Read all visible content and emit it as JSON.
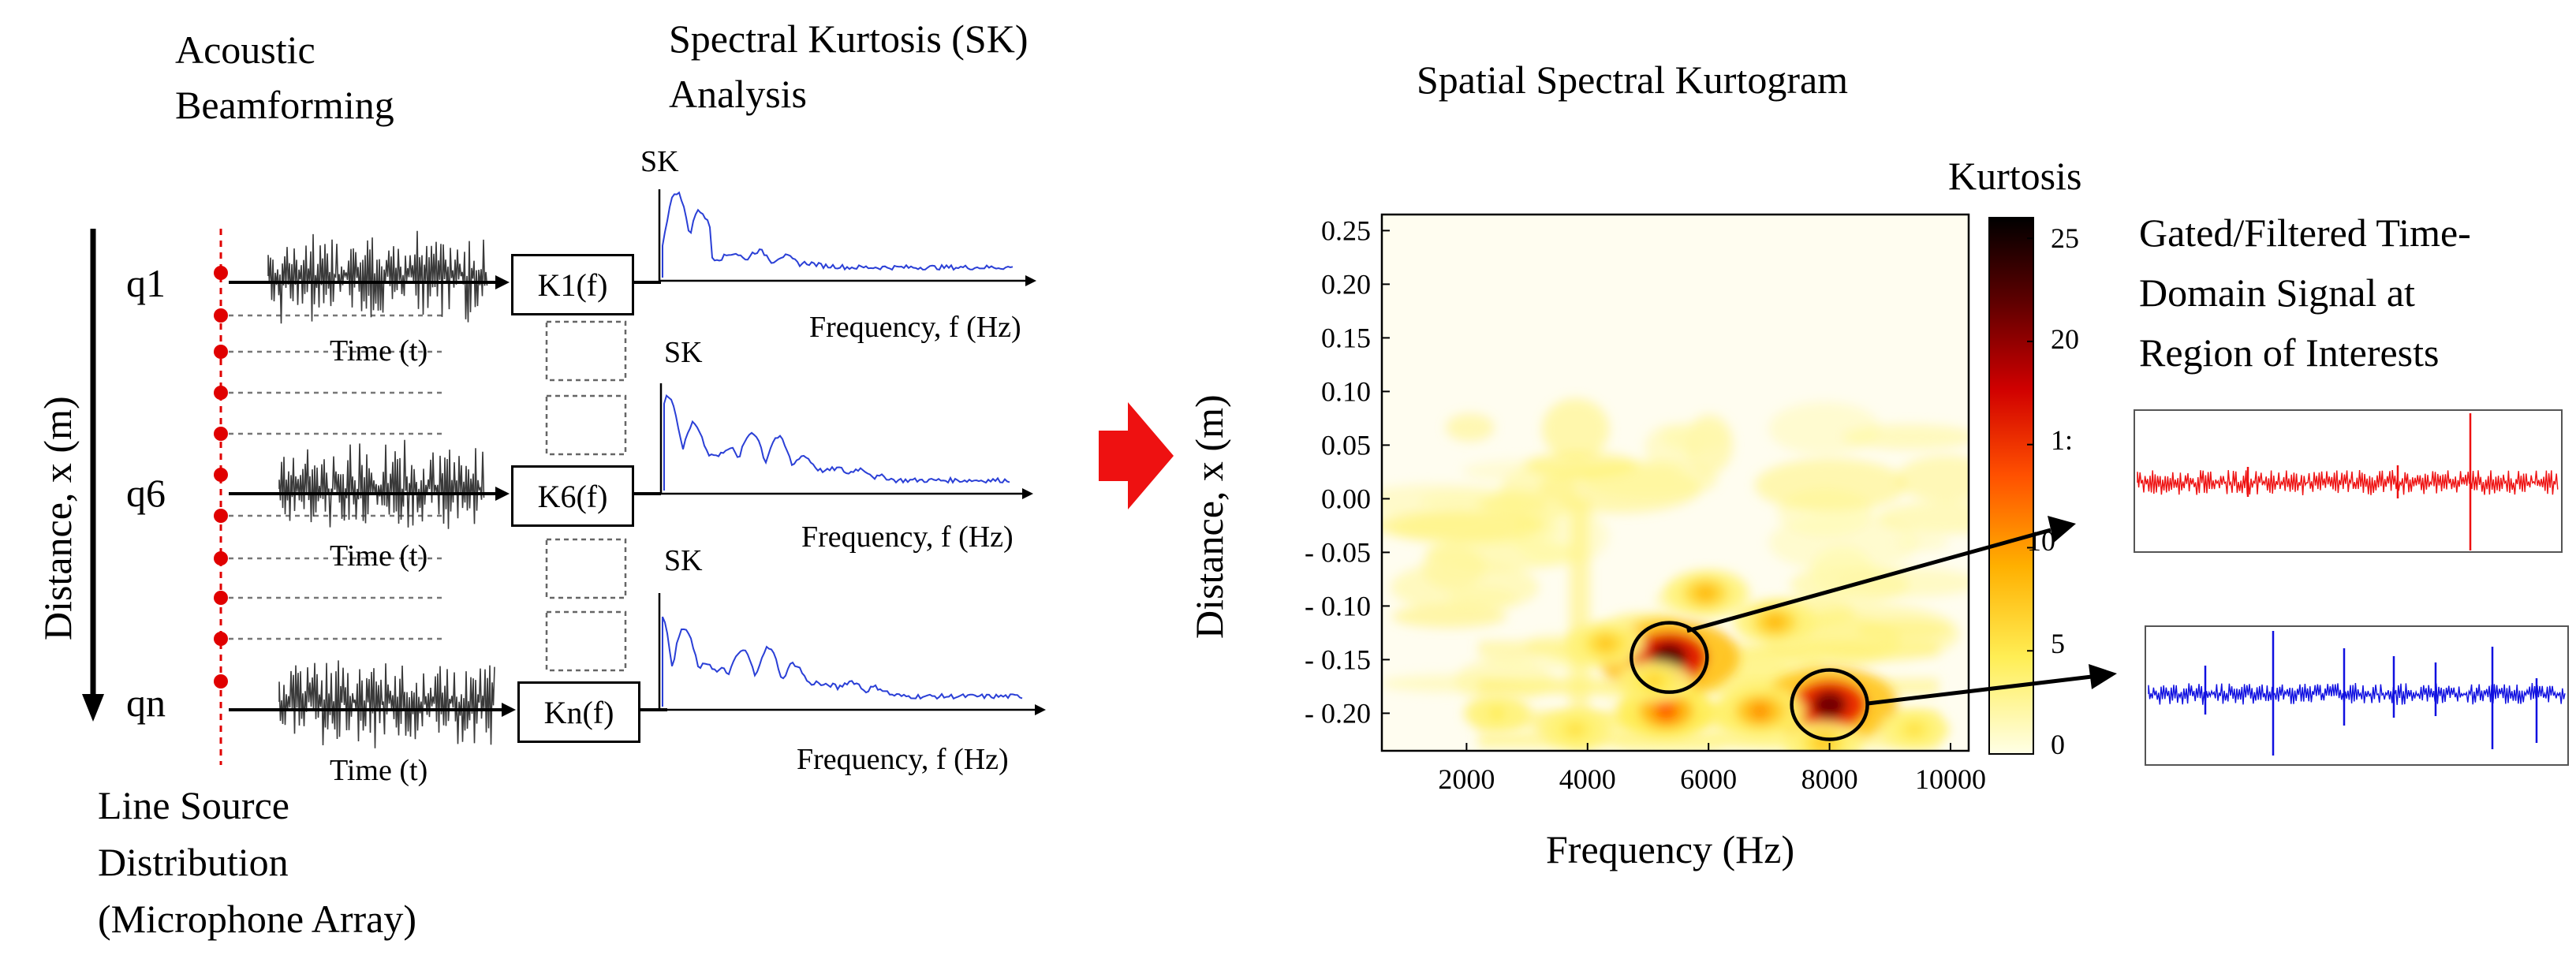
{
  "left": {
    "title_beamforming": [
      "Acoustic",
      "Beamforming"
    ],
    "title_sk": [
      "Spectral Kurtosis (SK)",
      "Analysis"
    ],
    "y_axis_label": "Distance, x (m)",
    "rows": [
      {
        "source": "q1",
        "box": "K1(f)",
        "time_label": "Time (t)",
        "sk_label": "SK",
        "freq_label": "Frequency,  f (Hz)"
      },
      {
        "source": "q6",
        "box": "K6(f)",
        "time_label": "Time (t)",
        "sk_label": "SK",
        "freq_label": "Frequency,  f (Hz)"
      },
      {
        "source": "qn",
        "box": "Kn(f)",
        "time_label": "Time (t)",
        "sk_label": "SK",
        "freq_label": "Frequency,  f (Hz)"
      }
    ],
    "line_source_label": [
      "Line Source",
      "Distribution",
      "(Microphone Array)"
    ]
  },
  "kurtogram": {
    "title": "Spatial Spectral Kurtogram",
    "xlabel": "Frequency  (Hz)",
    "ylabel": "Distance, x (m)",
    "colorbar_title": "Kurtosis",
    "colorbar_ticks": [
      "25",
      "20",
      "1:",
      "10",
      "5",
      "0"
    ]
  },
  "right": {
    "title": [
      "Gated/Filtered Time-",
      "Domain Signal at",
      "Region of Interests"
    ]
  },
  "colors": {
    "signal_gray": "#3a3a3a",
    "sk_blue": "#2a3fd6",
    "array_red": "#e00000",
    "arrow_red": "#ee1111",
    "trace_red": "#ee1111",
    "trace_blue": "#1010e0"
  },
  "chart_data": {
    "type": "heatmap",
    "title": "Spatial Spectral Kurtogram",
    "xlabel": "Frequency  (Hz)",
    "ylabel": "Distance, x (m)",
    "x_ticks": [
      2000,
      4000,
      6000,
      8000,
      10000
    ],
    "y_ticks": [
      "0.25",
      "0.20",
      "0.15",
      "0.10",
      "0.05",
      "0.00",
      "- 0.05",
      "- 0.10",
      "- 0.15",
      "- 0.20"
    ],
    "y_tick_values": [
      0.25,
      0.2,
      0.15,
      0.1,
      0.05,
      0.0,
      -0.05,
      -0.1,
      -0.15,
      -0.2
    ],
    "xlim": [
      600,
      10300
    ],
    "ylim": [
      -0.235,
      0.265
    ],
    "colorbar_range": [
      0,
      26
    ],
    "hotspots": [
      {
        "f": 5350,
        "x": -0.148,
        "kurtosis": 22
      },
      {
        "f": 8000,
        "x": -0.192,
        "kurtosis": 21
      },
      {
        "f": 5300,
        "x": -0.198,
        "kurtosis": 12
      },
      {
        "f": 6850,
        "x": -0.198,
        "kurtosis": 10
      },
      {
        "f": 5950,
        "x": -0.088,
        "kurtosis": 8
      },
      {
        "f": 7100,
        "x": -0.115,
        "kurtosis": 8
      },
      {
        "f": 4300,
        "x": -0.135,
        "kurtosis": 7
      },
      {
        "f": 5100,
        "x": -0.17,
        "kurtosis": 6
      },
      {
        "f": 3800,
        "x": -0.215,
        "kurtosis": 5
      },
      {
        "f": 9400,
        "x": -0.215,
        "kurtosis": 5
      },
      {
        "f": 2500,
        "x": -0.2,
        "kurtosis": 4
      },
      {
        "f": 7900,
        "x": -0.228,
        "kurtosis": 7
      }
    ],
    "highlighted_regions": [
      {
        "f": 5350,
        "x": -0.148
      },
      {
        "f": 8000,
        "x": -0.192
      }
    ]
  }
}
